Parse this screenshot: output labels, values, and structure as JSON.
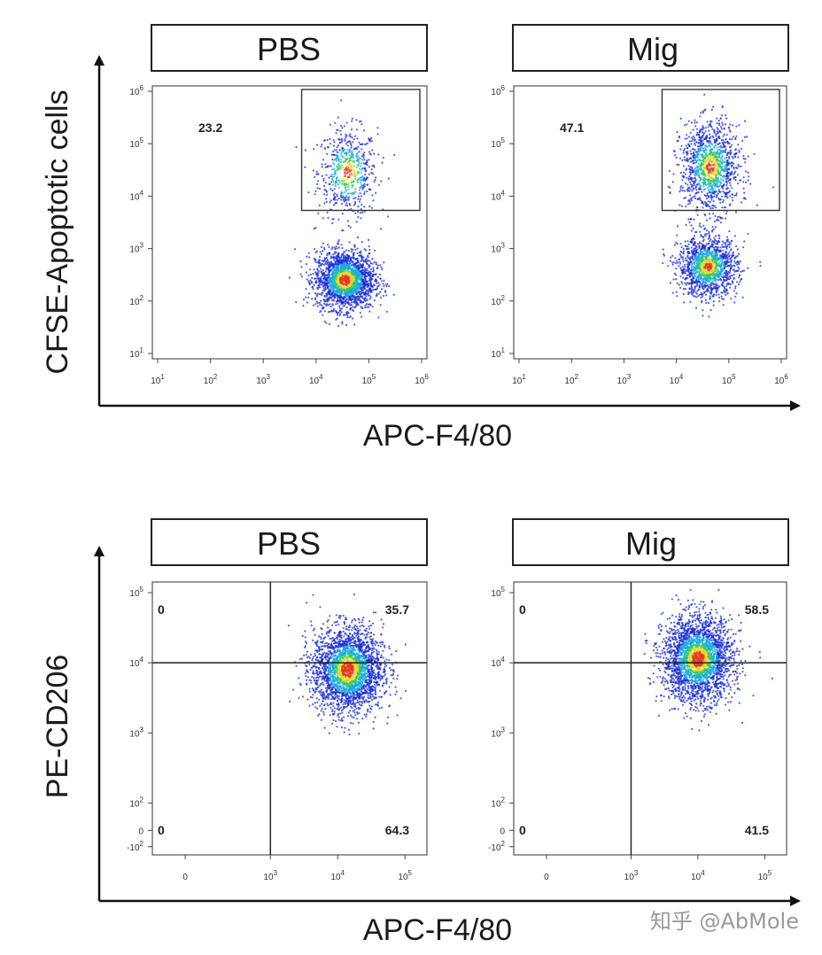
{
  "chart_data": [
    {
      "type": "scatter",
      "condition": "PBS",
      "xlabel": "APC-F4/80",
      "ylabel": "CFSE-Apoptotic cells",
      "x_scale": "log",
      "y_scale": "log",
      "xlim": [
        10,
        1000000
      ],
      "ylim": [
        10,
        1000000
      ],
      "x_tick_labels": [
        "10",
        "10",
        "10",
        "10",
        "10",
        "10"
      ],
      "x_tick_exponents": [
        "1",
        "2",
        "3",
        "4",
        "5",
        "6"
      ],
      "y_tick_labels": [
        "10",
        "10",
        "10",
        "10",
        "10",
        "10"
      ],
      "y_tick_exponents": [
        "1",
        "2",
        "3",
        "4",
        "5",
        "6"
      ],
      "gate": {
        "x_range": [
          3000,
          1000000
        ],
        "y_range": [
          6000,
          1000000
        ],
        "percent": "23.2"
      },
      "populations": [
        {
          "name": "",
          "x_center_log": 4.6,
          "y_center_log": 4.45,
          "fraction": 0.23
        },
        {
          "name": "",
          "x_center_log": 4.55,
          "y_center_log": 2.4,
          "fraction": 0.77
        }
      ]
    },
    {
      "type": "scatter",
      "condition": "Mig",
      "xlabel": "APC-F4/80",
      "ylabel": "CFSE-Apoptotic cells",
      "x_scale": "log",
      "y_scale": "log",
      "xlim": [
        10,
        1000000
      ],
      "ylim": [
        10,
        1000000
      ],
      "x_tick_labels": [
        "10",
        "10",
        "10",
        "10",
        "10",
        "10"
      ],
      "x_tick_exponents": [
        "1",
        "2",
        "3",
        "4",
        "5",
        "6"
      ],
      "y_tick_labels": [
        "10",
        "10",
        "10",
        "10",
        "10",
        "10"
      ],
      "y_tick_exponents": [
        "1",
        "2",
        "3",
        "4",
        "5",
        "6"
      ],
      "gate": {
        "x_range": [
          3000,
          1000000
        ],
        "y_range": [
          6000,
          1000000
        ],
        "percent": "47.1"
      },
      "populations": [
        {
          "name": "",
          "x_center_log": 4.65,
          "y_center_log": 4.55,
          "fraction": 0.47
        },
        {
          "name": "",
          "x_center_log": 4.6,
          "y_center_log": 2.65,
          "fraction": 0.53
        }
      ]
    },
    {
      "type": "scatter",
      "condition": "PBS",
      "xlabel": "APC-F4/80",
      "ylabel": "PE-CD206",
      "x_scale": "biexponential",
      "y_scale": "biexponential",
      "x_tick_labels": [
        "0",
        "10",
        "10",
        "10"
      ],
      "x_tick_exponents": [
        "",
        "3",
        "4",
        "5"
      ],
      "y_tick_labels": [
        "10",
        "10",
        "10",
        "10",
        "0",
        "-10"
      ],
      "y_tick_exponents": [
        "5",
        "4",
        "3",
        "2",
        "",
        "2"
      ],
      "quadrant_threshold": {
        "x": 1000,
        "y": 10000
      },
      "quadrants": {
        "upper_left": "0",
        "upper_right": "35.7",
        "lower_left": "0",
        "lower_right": "64.3"
      },
      "populations": [
        {
          "name": "",
          "x_center_log": 4.15,
          "y_center_log": 3.9,
          "fraction": 1.0
        }
      ]
    },
    {
      "type": "scatter",
      "condition": "Mig",
      "xlabel": "APC-F4/80",
      "ylabel": "PE-CD206",
      "x_scale": "biexponential",
      "y_scale": "biexponential",
      "x_tick_labels": [
        "0",
        "10",
        "10",
        "10"
      ],
      "x_tick_exponents": [
        "",
        "3",
        "4",
        "5"
      ],
      "y_tick_labels": [
        "10",
        "10",
        "10",
        "10",
        "0",
        "-10"
      ],
      "y_tick_exponents": [
        "5",
        "4",
        "3",
        "2",
        "",
        "2"
      ],
      "quadrant_threshold": {
        "x": 1000,
        "y": 10000
      },
      "quadrants": {
        "upper_left": "0",
        "upper_right": "58.5",
        "lower_left": "0",
        "lower_right": "41.5"
      },
      "populations": [
        {
          "name": "",
          "x_center_log": 4.0,
          "y_center_log": 4.05,
          "fraction": 1.0
        }
      ]
    }
  ],
  "density_colors": [
    "#1a2cd6",
    "#18a8e0",
    "#2fc86a",
    "#e8d82a",
    "#e23a1c"
  ],
  "row1": {
    "y_title": "CFSE-Apoptotic cells",
    "x_title": "APC-F4/80",
    "left_header": "PBS",
    "right_header": "Mig"
  },
  "row2": {
    "y_title": "PE-CD206",
    "x_title": "APC-F4/80",
    "left_header": "PBS",
    "right_header": "Mig"
  },
  "watermark": "知乎 @AbMole"
}
